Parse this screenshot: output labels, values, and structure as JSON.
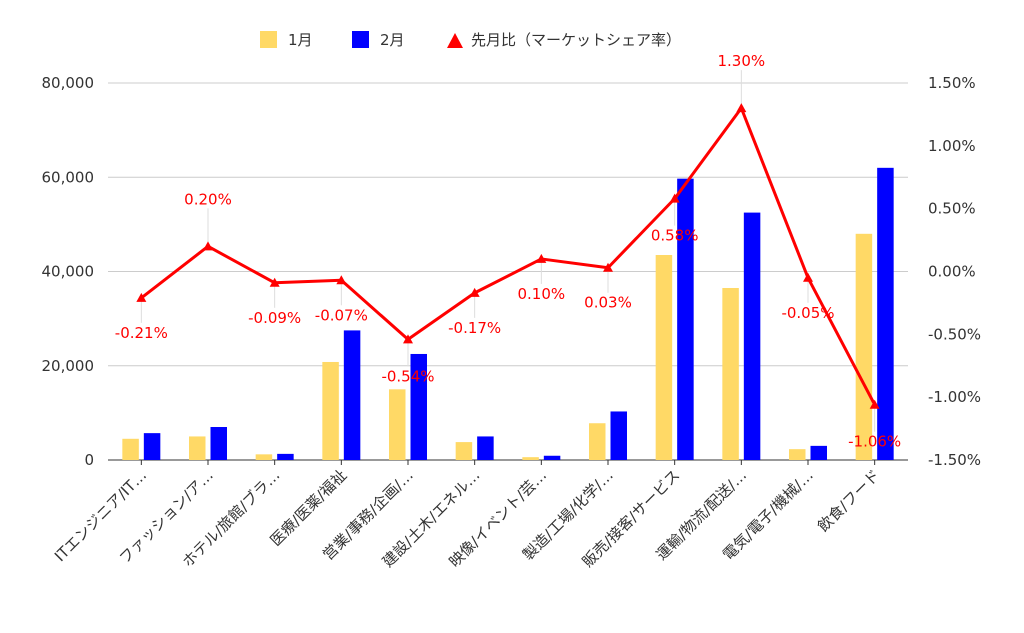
{
  "chart_data": {
    "type": "bar",
    "categories": [
      "ITエンジニア/IT…",
      "ファッション/ア…",
      "ホテル/旅館/ブラ…",
      "医療/医薬/福祉",
      "営業/事務/企画/…",
      "建設/土木/エネル…",
      "映像/イベント/芸…",
      "製造/工場/化学/…",
      "販売/接客/サービス",
      "運輸/物流/配送/…",
      "電気/電子/機械/…",
      "飲食/フード"
    ],
    "series": [
      {
        "name": "1月",
        "type": "bar",
        "axis": "left",
        "color": "#ffd966",
        "values": [
          4500,
          5000,
          1200,
          20800,
          15000,
          3800,
          600,
          7800,
          43500,
          36500,
          2300,
          48000
        ]
      },
      {
        "name": "2月",
        "type": "bar",
        "axis": "left",
        "color": "#0000ff",
        "values": [
          5700,
          7000,
          1300,
          27500,
          22500,
          5000,
          900,
          10300,
          59700,
          52500,
          3000,
          62000
        ]
      },
      {
        "name": "先月比（マーケットシェア率）",
        "type": "line",
        "axis": "right",
        "color": "#ff0000",
        "marker": "triangle",
        "values": [
          -0.21,
          0.2,
          -0.09,
          -0.07,
          -0.54,
          -0.17,
          0.1,
          0.03,
          0.58,
          1.3,
          -0.05,
          -1.06
        ],
        "labels": [
          "-0.21%",
          "0.20%",
          "-0.09%",
          "-0.07%",
          "-0.54%",
          "-0.17%",
          "0.10%",
          "0.03%",
          "0.58%",
          "1.30%",
          "-0.05%",
          "-1.06%"
        ]
      }
    ],
    "y_left": {
      "min": 0,
      "max": 80000,
      "ticks": [
        0,
        20000,
        40000,
        60000,
        80000
      ],
      "tick_labels": [
        "0",
        "20,000",
        "40,000",
        "60,000",
        "80,000"
      ]
    },
    "y_right": {
      "min": -1.5,
      "max": 1.5,
      "ticks": [
        -1.5,
        -1.0,
        -0.5,
        0.0,
        0.5,
        1.0,
        1.5
      ],
      "tick_labels": [
        "-1.50%",
        "-1.00%",
        "-0.50%",
        "0.00%",
        "0.50%",
        "1.00%",
        "1.50%"
      ]
    },
    "grid": true,
    "legend_position": "top"
  }
}
